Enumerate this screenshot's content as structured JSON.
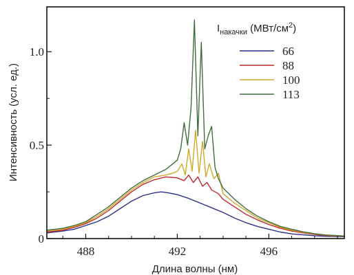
{
  "chart_data": {
    "type": "line",
    "title": "",
    "xlabel": "Длина волны (нм)",
    "ylabel": "Интенсивность (усл. ед.)",
    "xlim": [
      486.3,
      499.3
    ],
    "ylim": [
      0,
      1.24
    ],
    "xticks": [
      488,
      492,
      496
    ],
    "xtick_labels": [
      "488",
      "492",
      "496"
    ],
    "yticks": [
      0,
      0.5,
      1.0
    ],
    "ytick_labels": [
      "0",
      "0.5",
      "1.0"
    ],
    "grid": false,
    "legend": {
      "placement": "top-right",
      "title_main": "I",
      "title_sub": "накачки",
      "title_unit_prefix": "(МВт/см",
      "title_unit_sup": "2",
      "title_unit_suffix": ")"
    },
    "series": [
      {
        "name": "66",
        "color": "#2b2f8c",
        "x": [
          486.3,
          487.0,
          487.5,
          488.0,
          488.5,
          489.0,
          489.5,
          490.0,
          490.5,
          491.0,
          491.3,
          491.6,
          492.0,
          492.5,
          493.0,
          493.5,
          494.0,
          494.5,
          495.0,
          495.5,
          496.0,
          496.5,
          497.0,
          497.5,
          498.0,
          498.5,
          499.3
        ],
        "y": [
          0.03,
          0.04,
          0.05,
          0.07,
          0.09,
          0.12,
          0.16,
          0.2,
          0.23,
          0.245,
          0.25,
          0.245,
          0.235,
          0.215,
          0.19,
          0.165,
          0.14,
          0.11,
          0.085,
          0.065,
          0.05,
          0.035,
          0.025,
          0.02,
          0.015,
          0.012,
          0.01
        ]
      },
      {
        "name": "88",
        "color": "#c0282d",
        "x": [
          486.3,
          487.0,
          487.5,
          488.0,
          488.5,
          489.0,
          489.5,
          490.0,
          490.5,
          491.0,
          491.5,
          492.0,
          492.3,
          492.5,
          492.7,
          492.9,
          493.1,
          493.3,
          493.5,
          493.8,
          494.0,
          494.5,
          495.0,
          495.5,
          496.0,
          496.5,
          497.0,
          497.5,
          498.0,
          498.5,
          499.3
        ],
        "y": [
          0.035,
          0.045,
          0.06,
          0.08,
          0.11,
          0.15,
          0.2,
          0.25,
          0.29,
          0.315,
          0.33,
          0.325,
          0.31,
          0.34,
          0.3,
          0.33,
          0.28,
          0.3,
          0.26,
          0.24,
          0.21,
          0.17,
          0.13,
          0.1,
          0.075,
          0.055,
          0.04,
          0.03,
          0.022,
          0.016,
          0.012
        ]
      },
      {
        "name": "100",
        "color": "#d4a82a",
        "x": [
          486.3,
          487.0,
          487.5,
          488.0,
          488.5,
          489.0,
          489.5,
          490.0,
          490.5,
          491.0,
          491.5,
          491.8,
          492.0,
          492.2,
          492.35,
          492.5,
          492.65,
          492.8,
          492.95,
          493.1,
          493.25,
          493.4,
          493.6,
          493.8,
          494.0,
          494.5,
          495.0,
          495.5,
          496.0,
          496.5,
          497.0,
          497.5,
          498.0,
          498.5,
          499.3
        ],
        "y": [
          0.04,
          0.05,
          0.065,
          0.085,
          0.12,
          0.16,
          0.21,
          0.26,
          0.3,
          0.33,
          0.34,
          0.35,
          0.36,
          0.4,
          0.34,
          0.48,
          0.36,
          0.58,
          0.35,
          0.52,
          0.33,
          0.4,
          0.32,
          0.35,
          0.24,
          0.19,
          0.15,
          0.11,
          0.085,
          0.06,
          0.045,
          0.033,
          0.025,
          0.018,
          0.013
        ]
      },
      {
        "name": "113",
        "color": "#3e6e3a",
        "x": [
          486.3,
          487.0,
          487.5,
          488.0,
          488.5,
          489.0,
          489.5,
          490.0,
          490.5,
          491.0,
          491.5,
          491.8,
          492.0,
          492.15,
          492.3,
          492.45,
          492.6,
          492.75,
          492.9,
          493.05,
          493.2,
          493.35,
          493.5,
          493.65,
          493.8,
          494.0,
          494.5,
          495.0,
          495.5,
          496.0,
          496.5,
          497.0,
          497.5,
          498.0,
          498.5,
          499.3
        ],
        "y": [
          0.045,
          0.055,
          0.07,
          0.09,
          0.13,
          0.17,
          0.22,
          0.27,
          0.31,
          0.34,
          0.37,
          0.4,
          0.42,
          0.48,
          0.62,
          0.5,
          0.7,
          1.17,
          0.55,
          1.05,
          0.48,
          0.55,
          0.6,
          0.38,
          0.32,
          0.27,
          0.21,
          0.16,
          0.12,
          0.09,
          0.065,
          0.05,
          0.036,
          0.026,
          0.019,
          0.014
        ]
      }
    ]
  }
}
